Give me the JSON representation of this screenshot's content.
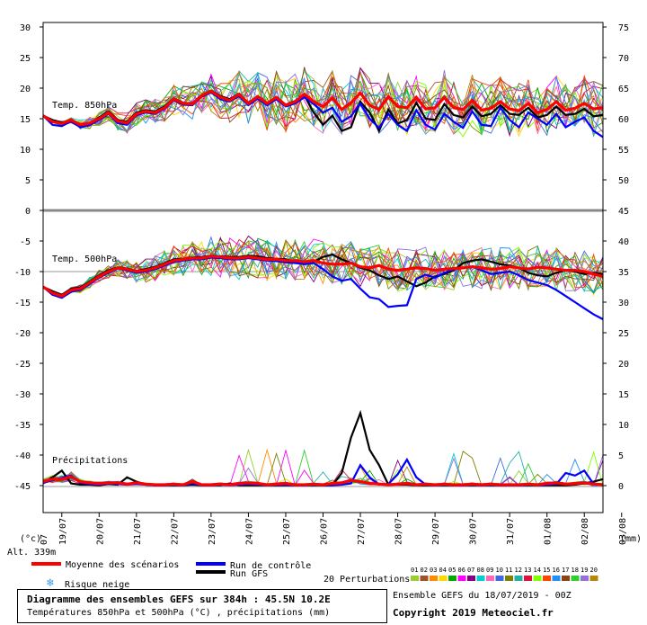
{
  "chart_data": {
    "type": "line",
    "title": "Diagramme des ensembles GEFS sur 384h : 45.5N 10.2E",
    "subtitle": "Températures 850hPa et 500hPa (°C) , précipitations (mm)",
    "run_info": "Ensemble GEFS du 18/07/2019 - 00Z",
    "copyright": "Copyright 2019 Meteociel.fr",
    "left_axis_unit": "(°c)",
    "right_axis_unit": "(mm)",
    "altitude": "Alt. 339m",
    "left_ticks": [
      "30",
      "25",
      "20",
      "15",
      "10",
      "5",
      "0",
      "-5",
      "-10",
      "-15",
      "-20",
      "-25",
      "-30",
      "-35",
      "-40",
      "-45"
    ],
    "right_ticks": [
      "75",
      "70",
      "65",
      "60",
      "55",
      "50",
      "45",
      "40",
      "35",
      "30",
      "25",
      "20",
      "15",
      "10",
      "5",
      "0"
    ],
    "dates": [
      "19/07",
      "20/07",
      "21/07",
      "22/07",
      "23/07",
      "24/07",
      "25/07",
      "26/07",
      "27/07",
      "28/07",
      "29/07",
      "30/07",
      "31/07",
      "01/08",
      "02/08",
      "03/08"
    ],
    "first_date_fragment": "07",
    "panel_labels": {
      "t850": "Temp. 850hPa",
      "t500": "Temp. 500hPa",
      "precip": "Précipitations"
    },
    "legend": {
      "mean": "Moyenne des scénarios",
      "control": "Run de contrôle",
      "gfs": "Run GFS",
      "snow": "Risque neige",
      "perturbations": "20 Perturbations",
      "perturbation_ids": [
        "01",
        "02",
        "03",
        "04",
        "05",
        "06",
        "07",
        "08",
        "09",
        "10",
        "11",
        "12",
        "13",
        "14",
        "15",
        "16",
        "17",
        "18",
        "19",
        "20"
      ]
    },
    "colors": {
      "mean": "#ff0000",
      "control": "#0000ff",
      "gfs": "#000000",
      "perturbations": [
        "#9acd32",
        "#a0522d",
        "#ff8c00",
        "#ffd700",
        "#00aa00",
        "#ff00ff",
        "#800080",
        "#00ced1",
        "#ff69b4",
        "#4169e1",
        "#808000",
        "#20b2aa",
        "#dc143c",
        "#7fff00",
        "#ff4500",
        "#1e90ff",
        "#8b4513",
        "#32cd32",
        "#9370db",
        "#b8860b"
      ]
    },
    "time_step_hours": 6,
    "t850": {
      "mean": [
        15.5,
        14.5,
        14.2,
        14.8,
        14.0,
        14.3,
        15.0,
        16.0,
        14.6,
        14.3,
        15.8,
        16.2,
        16.0,
        16.8,
        18.2,
        17.5,
        17.4,
        18.8,
        19.5,
        18.5,
        18.0,
        19.0,
        17.5,
        18.6,
        17.5,
        18.5,
        17.2,
        17.8,
        19.0,
        17.8,
        17.0,
        18.4,
        16.5,
        17.6,
        19.2,
        17.2,
        16.5,
        18.6,
        17.0,
        16.8,
        18.5,
        16.6,
        16.8,
        18.5,
        16.8,
        16.5,
        18.0,
        16.4,
        16.7,
        17.8,
        16.6,
        16.3,
        17.5,
        16.0,
        16.5,
        17.8,
        16.4,
        16.7,
        17.5,
        16.6,
        16.8
      ],
      "control": [
        15.5,
        14.0,
        13.8,
        14.6,
        13.6,
        14.0,
        14.8,
        15.8,
        14.3,
        14.0,
        15.6,
        16.0,
        15.8,
        16.6,
        18.0,
        17.3,
        17.2,
        18.6,
        19.3,
        18.2,
        17.8,
        18.7,
        17.2,
        18.3,
        17.2,
        18.2,
        17.0,
        17.5,
        18.5,
        17.4,
        16.0,
        16.8,
        14.5,
        15.4,
        17.5,
        15.0,
        13.5,
        15.8,
        14.0,
        13.0,
        16.4,
        14.0,
        13.2,
        15.8,
        14.5,
        13.5,
        16.2,
        14.0,
        13.8,
        16.8,
        14.8,
        13.6,
        16.0,
        15.0,
        14.0,
        15.8,
        13.6,
        14.5,
        15.2,
        13.0,
        12.0
      ],
      "gfs": [
        15.5,
        14.8,
        14.4,
        14.5,
        13.8,
        14.2,
        15.2,
        16.2,
        14.8,
        14.5,
        16.0,
        16.4,
        16.2,
        17.0,
        18.3,
        17.6,
        17.5,
        18.9,
        19.6,
        18.7,
        18.2,
        19.1,
        17.6,
        18.7,
        17.6,
        18.4,
        17.3,
        17.9,
        18.8,
        16.0,
        14.0,
        15.5,
        13.0,
        13.6,
        17.8,
        16.0,
        13.0,
        16.5,
        14.2,
        14.8,
        17.6,
        15.0,
        14.8,
        17.4,
        15.6,
        15.2,
        17.0,
        15.4,
        15.8,
        17.2,
        15.8,
        15.6,
        16.8,
        15.2,
        15.6,
        17.0,
        15.6,
        15.8,
        16.6,
        15.4,
        15.6
      ]
    },
    "t500": {
      "mean": [
        -12.5,
        -13.5,
        -14.0,
        -13.0,
        -12.8,
        -11.8,
        -10.8,
        -10.0,
        -9.4,
        -9.6,
        -10.0,
        -9.8,
        -9.4,
        -8.8,
        -8.2,
        -8.0,
        -7.8,
        -7.8,
        -7.5,
        -7.6,
        -7.8,
        -7.8,
        -7.6,
        -7.8,
        -8.0,
        -8.0,
        -8.2,
        -8.2,
        -8.4,
        -8.2,
        -8.6,
        -8.8,
        -8.8,
        -8.6,
        -9.2,
        -9.4,
        -9.0,
        -9.6,
        -9.8,
        -9.6,
        -9.4,
        -9.5,
        -9.8,
        -9.6,
        -9.5,
        -9.4,
        -9.2,
        -9.4,
        -9.6,
        -9.5,
        -9.2,
        -9.4,
        -9.6,
        -9.3,
        -9.4,
        -9.6,
        -9.8,
        -9.8,
        -10.0,
        -10.4,
        -10.8
      ],
      "control": [
        -12.5,
        -13.8,
        -14.3,
        -13.3,
        -13.0,
        -12.0,
        -11.0,
        -10.2,
        -9.5,
        -9.8,
        -10.2,
        -10.0,
        -9.6,
        -9.0,
        -8.4,
        -8.2,
        -8.0,
        -8.0,
        -7.7,
        -7.8,
        -8.0,
        -8.0,
        -7.8,
        -8.0,
        -8.2,
        -8.3,
        -8.5,
        -8.6,
        -8.8,
        -8.6,
        -9.6,
        -10.8,
        -11.5,
        -11.2,
        -12.8,
        -14.2,
        -14.5,
        -15.8,
        -15.6,
        -15.5,
        -11.2,
        -10.5,
        -11.0,
        -10.2,
        -9.6,
        -9.4,
        -9.2,
        -9.8,
        -10.4,
        -10.2,
        -10.0,
        -10.6,
        -11.4,
        -11.8,
        -12.2,
        -13.0,
        -14.0,
        -15.0,
        -16.0,
        -17.0,
        -17.8
      ],
      "gfs": [
        -12.5,
        -13.2,
        -13.8,
        -12.8,
        -12.6,
        -11.6,
        -10.6,
        -9.8,
        -9.3,
        -9.5,
        -9.9,
        -9.6,
        -9.2,
        -8.6,
        -8.0,
        -7.9,
        -7.7,
        -7.6,
        -7.4,
        -7.5,
        -7.6,
        -7.6,
        -7.4,
        -7.5,
        -7.8,
        -7.9,
        -8.0,
        -8.4,
        -8.8,
        -8.4,
        -7.6,
        -7.2,
        -8.0,
        -8.6,
        -9.4,
        -9.8,
        -10.6,
        -11.2,
        -10.8,
        -11.6,
        -12.4,
        -11.8,
        -10.8,
        -10.4,
        -9.8,
        -8.6,
        -8.2,
        -8.0,
        -8.4,
        -8.8,
        -9.0,
        -9.4,
        -10.2,
        -10.6,
        -10.8,
        -10.2,
        -9.8,
        -10.0,
        -10.4,
        -10.2,
        -10.4
      ]
    },
    "precip": {
      "mean": [
        0.8,
        1.2,
        1.2,
        1.6,
        0.8,
        0.6,
        0.5,
        0.6,
        0.6,
        0.4,
        0.6,
        0.4,
        0.3,
        0.3,
        0.4,
        0.3,
        0.8,
        0.3,
        0.3,
        0.4,
        0.3,
        0.5,
        0.6,
        0.5,
        0.3,
        0.4,
        0.5,
        0.3,
        0.3,
        0.4,
        0.3,
        0.5,
        0.6,
        1.0,
        0.8,
        0.5,
        0.4,
        0.3,
        0.4,
        0.5,
        0.3,
        0.4,
        0.3,
        0.4,
        0.3,
        0.3,
        0.4,
        0.3,
        0.4,
        0.3,
        0.3,
        0.3,
        0.4,
        0.3,
        0.5,
        0.6,
        0.4,
        0.5,
        0.6,
        0.4,
        0.3
      ],
      "control": [
        0.6,
        1.0,
        1.4,
        1.8,
        0.6,
        0.4,
        0.3,
        0.5,
        0.4,
        0.3,
        0.4,
        0.3,
        0.2,
        0.2,
        0.3,
        0.2,
        0.5,
        0.2,
        0.2,
        0.3,
        0.2,
        0.3,
        0.4,
        0.3,
        0.2,
        0.3,
        0.3,
        0.2,
        0.2,
        0.3,
        0.2,
        0.2,
        0.3,
        0.5,
        3.5,
        1.5,
        0.3,
        0.4,
        2.0,
        4.4,
        1.5,
        0.3,
        0.2,
        0.3,
        0.2,
        0.2,
        0.3,
        0.2,
        0.3,
        0.2,
        0.2,
        0.2,
        0.3,
        0.2,
        0.3,
        0.4,
        2.2,
        1.8,
        2.6,
        0.4,
        0.2
      ],
      "gfs": [
        0.5,
        1.5,
        2.6,
        0.5,
        0.3,
        0.3,
        0.2,
        0.4,
        0.3,
        1.5,
        0.8,
        0.3,
        0.2,
        0.2,
        0.2,
        0.2,
        0.3,
        0.2,
        0.2,
        0.2,
        0.5,
        0.2,
        0.2,
        0.2,
        0.2,
        0.2,
        0.2,
        0.2,
        0.2,
        0.2,
        0.2,
        0.2,
        2.2,
        8.0,
        12.0,
        6.0,
        3.5,
        0.3,
        0.3,
        0.3,
        0.2,
        0.2,
        0.2,
        0.2,
        0.2,
        0.2,
        0.2,
        0.2,
        0.2,
        0.2,
        0.2,
        0.2,
        0.2,
        0.2,
        0.2,
        0.2,
        0.2,
        0.3,
        0.5,
        0.8,
        1.2
      ]
    }
  }
}
